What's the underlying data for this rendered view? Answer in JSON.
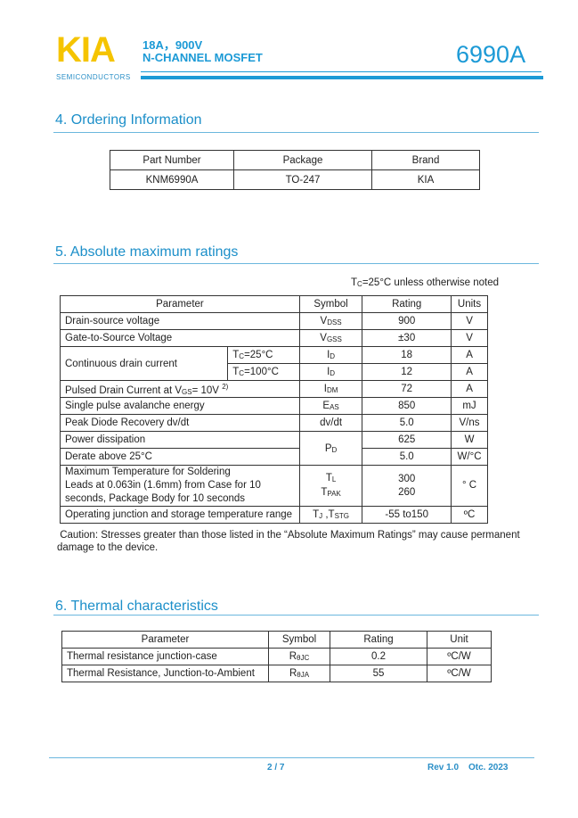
{
  "header": {
    "logo": "KIA",
    "logo_sub": "SEMICONDUCTORS",
    "line1": "18A，900V",
    "line2": "N-CHANNEL MOSFET",
    "part_number": "6990A",
    "accent_color": "#1c9ad6",
    "logo_color": "#f5c400"
  },
  "ordering": {
    "title": "4. Ordering Information",
    "headers": [
      "Part Number",
      "Package",
      "Brand"
    ],
    "row": [
      "KNM6990A",
      "TO-247",
      "KIA"
    ]
  },
  "absmax": {
    "title": "5. Absolute maximum ratings",
    "condition": {
      "prefix": "T",
      "sub": "C",
      "text": "=25°C unless otherwise noted"
    },
    "headers": [
      "Parameter",
      "Symbol",
      "Rating",
      "Units"
    ],
    "rows": [
      {
        "param": "Drain-source voltage",
        "sym": "V",
        "sub": "DSS",
        "rating": "900",
        "unit": "V"
      },
      {
        "param": "Gate-to-Source Voltage",
        "sym": "V",
        "sub": "GSS",
        "rating": "±30",
        "unit": "V"
      },
      {
        "param": "Continuous drain current",
        "cond1": "=25°C",
        "cond2": "=100°C",
        "sym": "I",
        "sub": "D",
        "rating1": "18",
        "rating2": "12",
        "unit": "A"
      },
      {
        "param": "Pulsed Drain Current at V",
        "psub": "GS",
        "ptail": "= 10V",
        "psup": "2)",
        "sym": "I",
        "sub": "DM",
        "rating": "72",
        "unit": "A"
      },
      {
        "param": "Single pulse avalanche energy",
        "sym": "E",
        "sub": "AS",
        "rating": "850",
        "unit": "mJ"
      },
      {
        "param": "Peak Diode Recovery dv/dt",
        "sym": "dv/dt",
        "rating": "5.0",
        "unit": "V/ns"
      },
      {
        "param": "Power dissipation",
        "sym": "P",
        "sub": "D",
        "rating": "625",
        "unit": "W"
      },
      {
        "param": "Derate above 25°C",
        "rating": "5.0",
        "unit": "W/°C"
      },
      {
        "param1": "Maximum Temperature for Soldering",
        "param2": "Leads at 0.063in (1.6mm) from Case for 10",
        "param3": "seconds, Package Body for 10 seconds",
        "sym1": "T",
        "sub1": "L",
        "sym2": "T",
        "sub2": "PAK",
        "rating1": "300",
        "rating2": "260",
        "unit": "° C"
      },
      {
        "param": "Operating junction and storage temperature range",
        "sym": "T",
        "sub": "J",
        "sym2": " ,T",
        "sub2": "STG",
        "rating": "-55 to150",
        "unit": "ºC"
      }
    ],
    "cond_prefix": "T",
    "cond_sub": "C",
    "caution1": " Caution: Stresses greater than those listed in the “Absolute Maximum Ratings” may cause permanent",
    "caution2": "damage to the device."
  },
  "thermal": {
    "title": "6. Thermal characteristics",
    "headers": [
      "Parameter",
      "Symbol",
      "Rating",
      "Unit"
    ],
    "rows": [
      {
        "param": "Thermal resistance junction-case",
        "sym": "R",
        "sub": "θJC",
        "rating": "0.2",
        "unit": "ºC/W"
      },
      {
        "param": "Thermal Resistance, Junction-to-Ambient",
        "sym": "R",
        "sub": "θJA",
        "rating": "55",
        "unit": "ºC/W"
      }
    ]
  },
  "footer": {
    "page": "2 / 7",
    "rev": "Rev 1.0",
    "date": "Otc. 2023"
  }
}
